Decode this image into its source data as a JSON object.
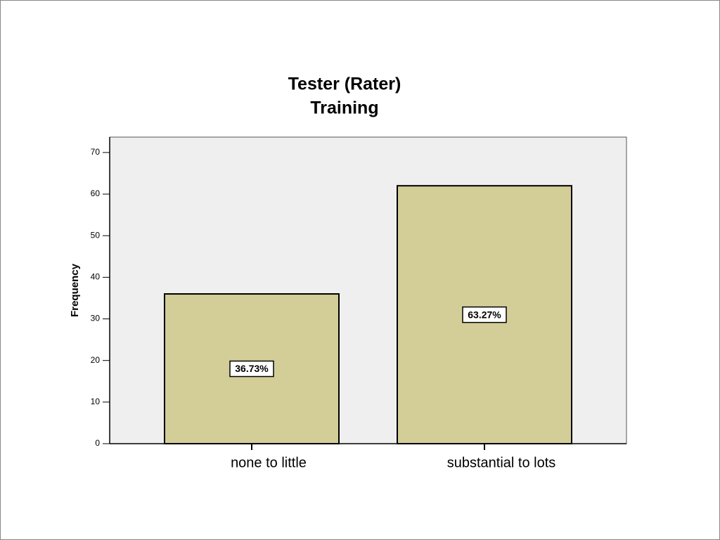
{
  "chart_data": {
    "type": "bar",
    "title": [
      "Tester (Rater)",
      "Training"
    ],
    "y_label": "Frequency",
    "categories": [
      "none to little",
      "substantial to lots"
    ],
    "values": [
      36,
      62
    ],
    "data_labels": [
      "36.73%",
      "63.27%"
    ],
    "color": "#d3ce97",
    "background": "#efefef",
    "ylim": [
      0,
      73.7
    ],
    "yticks": [
      0,
      10,
      20,
      30,
      40,
      50,
      60,
      70
    ]
  }
}
